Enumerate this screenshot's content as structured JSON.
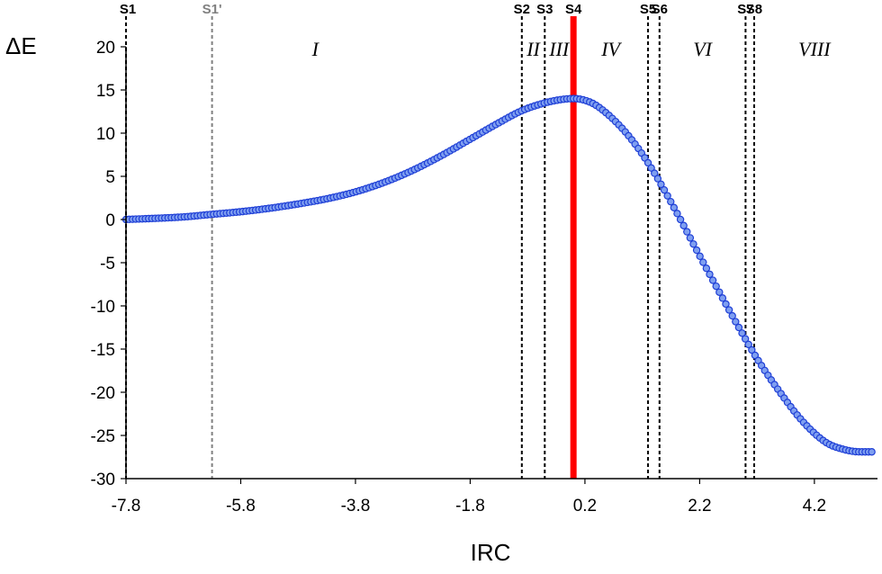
{
  "chart_data": {
    "type": "scatter",
    "title": "",
    "xlabel": "IRC",
    "ylabel": "ΔE",
    "xlim": [
      -7.8,
      5.3
    ],
    "ylim": [
      -30,
      20
    ],
    "grid": false,
    "x_ticks": [
      -7.8,
      -5.8,
      -3.8,
      -1.8,
      0.2,
      2.2,
      4.2
    ],
    "x_tick_labels": [
      "-7.8",
      "-5.8",
      "-3.8",
      "-1.8",
      "0.2",
      "2.2",
      "4.2"
    ],
    "y_ticks": [
      20,
      15,
      10,
      5,
      0,
      -5,
      -10,
      -15,
      -20,
      -25,
      -30
    ],
    "y_tick_labels": [
      "20",
      "15",
      "10",
      "5",
      "0",
      "-5",
      "-10",
      "-15",
      "-20",
      "-25",
      "-30"
    ],
    "series_color": "#1f3fd6",
    "series_fill": "#7f9ff0",
    "series": [
      {
        "x": [
          -7.8,
          -6.8,
          -6.3,
          -5.8,
          -5.3,
          -4.8,
          -4.3,
          -3.8,
          -3.3,
          -2.8,
          -2.3,
          -1.8,
          -1.3,
          -0.9,
          -0.5,
          -0.2,
          0.0,
          0.2,
          0.4,
          0.8,
          1.1,
          1.4,
          1.8,
          2.2,
          2.6,
          2.9,
          3.2,
          3.6,
          4.0,
          4.4,
          4.7,
          5.0,
          5.2
        ],
        "y": [
          0.0,
          0.3,
          0.6,
          0.9,
          1.3,
          1.8,
          2.4,
          3.2,
          4.3,
          5.7,
          7.4,
          9.3,
          11.2,
          12.6,
          13.5,
          13.9,
          14.0,
          13.8,
          13.2,
          10.9,
          8.5,
          5.5,
          0.8,
          -4.2,
          -9.1,
          -12.7,
          -16.1,
          -20.0,
          -23.4,
          -25.8,
          -26.6,
          -26.9,
          -26.9
        ]
      }
    ],
    "stage_lines": [
      {
        "label": "S1",
        "x": -7.8,
        "color": "#000000",
        "style": "dashed"
      },
      {
        "label": "S1'",
        "x": -6.3,
        "color": "#808080",
        "style": "dashed"
      },
      {
        "label": "S2",
        "x": -0.9,
        "color": "#000000",
        "style": "dashed"
      },
      {
        "label": "S3",
        "x": -0.5,
        "color": "#000000",
        "style": "dashed"
      },
      {
        "label": "S4",
        "x": 0.0,
        "color": "#ff0000",
        "style": "solid"
      },
      {
        "label": "S5",
        "x": 1.3,
        "color": "#000000",
        "style": "dashed"
      },
      {
        "label": "S6",
        "x": 1.5,
        "color": "#000000",
        "style": "dashed"
      },
      {
        "label": "S7",
        "x": 3.0,
        "color": "#000000",
        "style": "dashed"
      },
      {
        "label": "S8",
        "x": 3.15,
        "color": "#000000",
        "style": "dashed"
      }
    ],
    "regions": [
      {
        "label": "I",
        "x": -4.5
      },
      {
        "label": "II",
        "x": -0.7
      },
      {
        "label": "III",
        "x": -0.25
      },
      {
        "label": "IV",
        "x": 0.65
      },
      {
        "label": "VI",
        "x": 2.25
      },
      {
        "label": "VIII",
        "x": 4.2
      }
    ]
  }
}
